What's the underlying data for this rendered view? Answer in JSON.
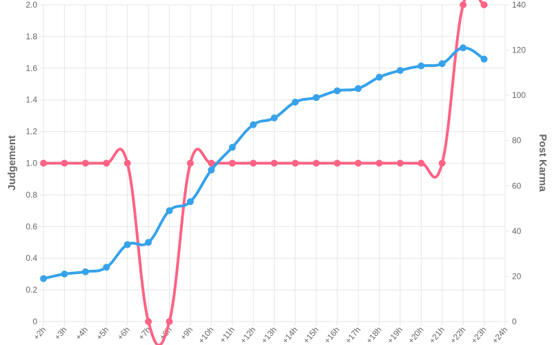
{
  "chart_data": {
    "type": "line",
    "categories": [
      "+2h",
      "+3h",
      "+4h",
      "+5h",
      "+6h",
      "+7h",
      "+8h",
      "+9h",
      "+10h",
      "+11h",
      "+12h",
      "+13h",
      "+14h",
      "+15h",
      "+16h",
      "+17h",
      "+18h",
      "+19h",
      "+20h",
      "+21h",
      "+22h",
      "+23h",
      "+24h"
    ],
    "y_label": "Judgement",
    "y2_label": "Post Karma",
    "series": [
      {
        "name": "Judgement",
        "color": "#ff6384",
        "values": [
          1,
          1,
          1,
          1,
          1,
          0,
          0,
          1,
          1,
          1,
          1,
          1,
          1,
          1,
          1,
          1,
          1,
          1,
          1,
          1,
          2,
          2,
          null
        ]
      },
      {
        "name": "Post Karma",
        "color": "#36a2eb",
        "axis": "y2",
        "values": [
          19,
          21,
          22,
          24,
          34,
          35,
          49,
          53,
          67,
          77,
          87,
          90,
          97,
          99,
          102,
          103,
          108,
          111,
          113,
          114,
          121,
          116,
          null
        ]
      }
    ],
    "ylim": [
      0,
      2
    ],
    "yticks": [
      0,
      0.2,
      0.4,
      0.6,
      0.8,
      {
        "value": 1,
        "label": "1.0"
      },
      1.2,
      1.4,
      1.6,
      1.8,
      {
        "value": 2,
        "label": "2.0"
      }
    ],
    "y2lim": [
      0,
      140
    ],
    "y2ticks": [
      0,
      20,
      40,
      60,
      80,
      100,
      120,
      140
    ],
    "grid": true
  }
}
